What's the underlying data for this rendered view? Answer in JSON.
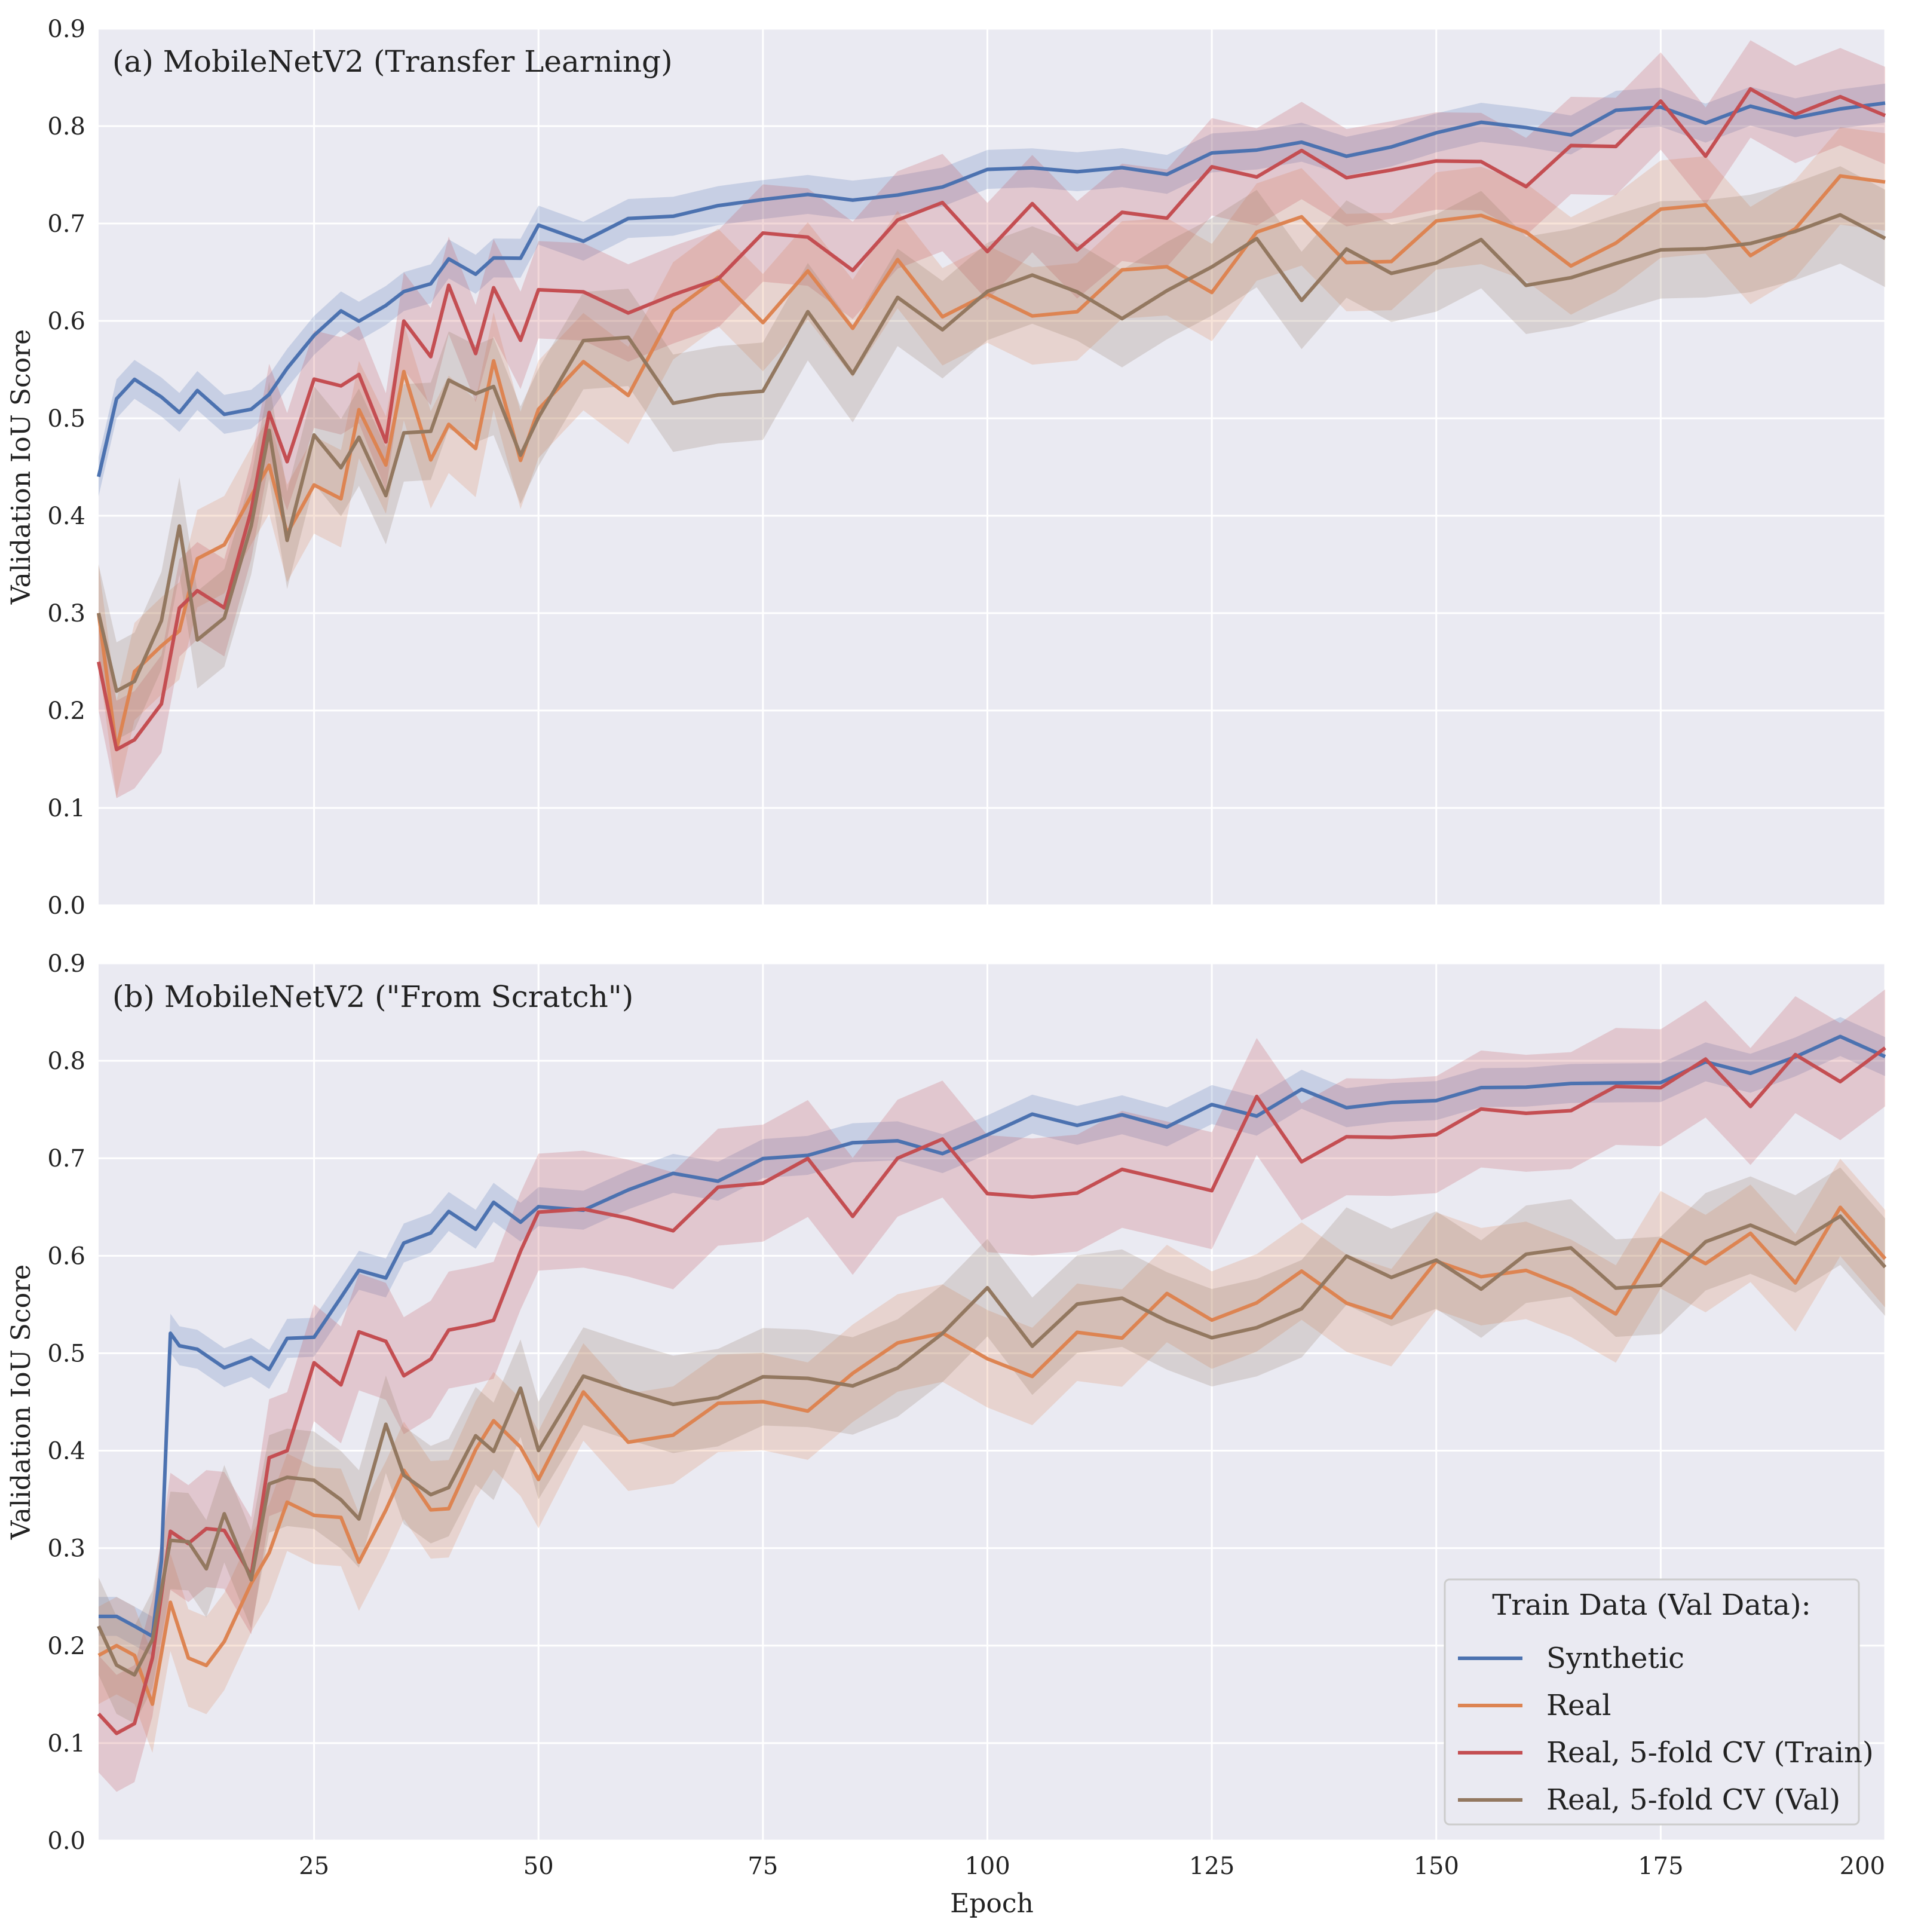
{
  "chart_data": [
    {
      "type": "line",
      "title": "(a) MobileNetV2 (Transfer Learning)",
      "xlabel": "",
      "ylabel": "Validation IoU Score",
      "xlim": [
        1,
        200
      ],
      "ylim": [
        0,
        0.9
      ],
      "xticks": [
        "25",
        "50",
        "75",
        "100",
        "125",
        "150",
        "175",
        "200"
      ],
      "yticks": [
        "0.0",
        "0.1",
        "0.2",
        "0.3",
        "0.4",
        "0.5",
        "0.6",
        "0.7",
        "0.8",
        "0.9"
      ],
      "grid": true,
      "series": [
        {
          "name": "Synthetic",
          "color": "#4C72B0",
          "x": [
            1,
            3,
            5,
            8,
            10,
            12,
            15,
            18,
            20,
            22,
            25,
            28,
            30,
            33,
            35,
            38,
            40,
            43,
            45,
            48,
            50,
            55,
            60,
            65,
            70,
            75,
            80,
            85,
            90,
            95,
            100,
            105,
            110,
            115,
            120,
            125,
            130,
            135,
            140,
            145,
            150,
            155,
            160,
            165,
            170,
            175,
            180,
            185,
            190,
            195,
            200
          ],
          "y": [
            0.44,
            0.52,
            0.54,
            0.52,
            0.51,
            0.53,
            0.5,
            0.52,
            0.53,
            0.55,
            0.57,
            0.6,
            0.61,
            0.6,
            0.62,
            0.64,
            0.65,
            0.65,
            0.66,
            0.67,
            0.69,
            0.68,
            0.7,
            0.71,
            0.73,
            0.73,
            0.73,
            0.74,
            0.74,
            0.74,
            0.74,
            0.75,
            0.76,
            0.76,
            0.76,
            0.77,
            0.76,
            0.77,
            0.77,
            0.77,
            0.79,
            0.79,
            0.8,
            0.8,
            0.81,
            0.81,
            0.81,
            0.82,
            0.82,
            0.83,
            0.83
          ],
          "band": 0.02
        },
        {
          "name": "Real",
          "color": "#DD8452",
          "x": [
            1,
            3,
            5,
            8,
            10,
            12,
            15,
            18,
            20,
            22,
            25,
            28,
            30,
            33,
            35,
            38,
            40,
            43,
            45,
            48,
            50,
            55,
            60,
            65,
            70,
            75,
            80,
            85,
            90,
            95,
            100,
            105,
            110,
            115,
            120,
            125,
            130,
            135,
            140,
            145,
            150,
            155,
            160,
            165,
            170,
            175,
            180,
            185,
            190,
            195,
            200
          ],
          "y": [
            0.3,
            0.16,
            0.24,
            0.27,
            0.3,
            0.33,
            0.35,
            0.42,
            0.45,
            0.38,
            0.47,
            0.41,
            0.5,
            0.46,
            0.52,
            0.47,
            0.5,
            0.49,
            0.52,
            0.44,
            0.48,
            0.53,
            0.56,
            0.6,
            0.61,
            0.62,
            0.63,
            0.62,
            0.63,
            0.63,
            0.64,
            0.6,
            0.62,
            0.66,
            0.65,
            0.66,
            0.68,
            0.67,
            0.68,
            0.68,
            0.68,
            0.68,
            0.68,
            0.69,
            0.68,
            0.69,
            0.7,
            0.7,
            0.7,
            0.71,
            0.71
          ],
          "band": 0.05
        },
        {
          "name": "Real, 5-fold CV (Train)",
          "color": "#C44E52",
          "x": [
            1,
            3,
            5,
            8,
            10,
            12,
            15,
            18,
            20,
            22,
            25,
            28,
            30,
            33,
            35,
            38,
            40,
            43,
            45,
            48,
            50,
            55,
            60,
            65,
            70,
            75,
            80,
            85,
            90,
            95,
            100,
            105,
            110,
            115,
            120,
            125,
            130,
            135,
            140,
            145,
            150,
            155,
            160,
            165,
            170,
            175,
            180,
            185,
            190,
            195,
            200
          ],
          "y": [
            0.25,
            0.16,
            0.17,
            0.22,
            0.27,
            0.32,
            0.3,
            0.4,
            0.5,
            0.45,
            0.55,
            0.5,
            0.52,
            0.5,
            0.58,
            0.55,
            0.6,
            0.57,
            0.6,
            0.58,
            0.63,
            0.63,
            0.64,
            0.66,
            0.65,
            0.66,
            0.68,
            0.68,
            0.7,
            0.7,
            0.71,
            0.71,
            0.71,
            0.72,
            0.73,
            0.74,
            0.73,
            0.75,
            0.75,
            0.76,
            0.77,
            0.77,
            0.77,
            0.78,
            0.78,
            0.79,
            0.79,
            0.8,
            0.8,
            0.81,
            0.8
          ],
          "band": 0.05
        },
        {
          "name": "Real, 5-fold CV (Val)",
          "color": "#937860",
          "x": [
            1,
            3,
            5,
            8,
            10,
            12,
            15,
            18,
            20,
            22,
            25,
            28,
            30,
            33,
            35,
            38,
            40,
            43,
            45,
            48,
            50,
            55,
            60,
            65,
            70,
            75,
            80,
            85,
            90,
            95,
            100,
            105,
            110,
            115,
            120,
            125,
            130,
            135,
            140,
            145,
            150,
            155,
            160,
            165,
            170,
            175,
            180,
            185,
            190,
            195,
            200
          ],
          "y": [
            0.3,
            0.22,
            0.23,
            0.26,
            0.38,
            0.24,
            0.28,
            0.42,
            0.46,
            0.41,
            0.5,
            0.43,
            0.47,
            0.45,
            0.52,
            0.51,
            0.54,
            0.53,
            0.56,
            0.5,
            0.53,
            0.57,
            0.56,
            0.54,
            0.55,
            0.56,
            0.57,
            0.58,
            0.6,
            0.6,
            0.61,
            0.62,
            0.63,
            0.63,
            0.64,
            0.64,
            0.65,
            0.65,
            0.66,
            0.66,
            0.67,
            0.67,
            0.67,
            0.68,
            0.68,
            0.68,
            0.69,
            0.69,
            0.7,
            0.7,
            0.7
          ],
          "band": 0.05
        }
      ]
    },
    {
      "type": "line",
      "title": "(b) MobileNetV2 (\"From Scratch\")",
      "xlabel": "Epoch",
      "ylabel": "Validation IoU Score",
      "xlim": [
        1,
        200
      ],
      "ylim": [
        0,
        0.9
      ],
      "xticks": [
        "25",
        "50",
        "75",
        "100",
        "125",
        "150",
        "175",
        "200"
      ],
      "yticks": [
        "0.0",
        "0.1",
        "0.2",
        "0.3",
        "0.4",
        "0.5",
        "0.6",
        "0.7",
        "0.8",
        "0.9"
      ],
      "grid": true,
      "legend": {
        "title": "Train Data (Val Data):",
        "placement": "lower-right",
        "entries": [
          "Synthetic",
          "Real",
          "Real, 5-fold CV (Train)",
          "Real, 5-fold CV (Val)"
        ]
      },
      "series": [
        {
          "name": "Synthetic",
          "color": "#4C72B0",
          "x": [
            1,
            3,
            5,
            7,
            8,
            9,
            10,
            12,
            15,
            18,
            20,
            22,
            25,
            28,
            30,
            33,
            35,
            38,
            40,
            43,
            45,
            48,
            50,
            55,
            60,
            65,
            70,
            75,
            80,
            85,
            90,
            95,
            100,
            105,
            110,
            115,
            120,
            125,
            130,
            135,
            140,
            145,
            150,
            155,
            160,
            165,
            170,
            175,
            180,
            185,
            190,
            195,
            200
          ],
          "y": [
            0.23,
            0.23,
            0.22,
            0.22,
            0.3,
            0.52,
            0.52,
            0.5,
            0.48,
            0.48,
            0.49,
            0.5,
            0.52,
            0.55,
            0.57,
            0.58,
            0.6,
            0.61,
            0.63,
            0.64,
            0.64,
            0.64,
            0.64,
            0.65,
            0.66,
            0.67,
            0.68,
            0.69,
            0.7,
            0.7,
            0.71,
            0.72,
            0.72,
            0.73,
            0.73,
            0.74,
            0.74,
            0.75,
            0.75,
            0.76,
            0.76,
            0.77,
            0.77,
            0.78,
            0.78,
            0.78,
            0.79,
            0.79,
            0.8,
            0.8,
            0.8,
            0.81,
            0.81
          ],
          "band": 0.02
        },
        {
          "name": "Real",
          "color": "#DD8452",
          "x": [
            1,
            3,
            5,
            7,
            9,
            11,
            13,
            15,
            18,
            20,
            22,
            25,
            28,
            30,
            33,
            35,
            38,
            40,
            43,
            45,
            48,
            50,
            55,
            60,
            65,
            70,
            75,
            80,
            85,
            90,
            95,
            100,
            105,
            110,
            115,
            120,
            125,
            130,
            135,
            140,
            145,
            150,
            155,
            160,
            165,
            170,
            175,
            180,
            185,
            190,
            195,
            200
          ],
          "y": [
            0.19,
            0.2,
            0.19,
            0.17,
            0.22,
            0.22,
            0.2,
            0.24,
            0.28,
            0.32,
            0.33,
            0.35,
            0.33,
            0.31,
            0.36,
            0.37,
            0.37,
            0.38,
            0.4,
            0.41,
            0.42,
            0.41,
            0.43,
            0.44,
            0.44,
            0.45,
            0.46,
            0.47,
            0.47,
            0.48,
            0.49,
            0.5,
            0.5,
            0.52,
            0.52,
            0.53,
            0.53,
            0.54,
            0.55,
            0.55,
            0.56,
            0.56,
            0.56,
            0.57,
            0.57,
            0.58,
            0.58,
            0.59,
            0.59,
            0.6,
            0.61,
            0.63
          ],
          "band": 0.05
        },
        {
          "name": "Real, 5-fold CV (Train)",
          "color": "#C44E52",
          "x": [
            1,
            3,
            5,
            7,
            9,
            11,
            13,
            15,
            18,
            20,
            22,
            25,
            28,
            30,
            33,
            35,
            38,
            40,
            43,
            45,
            48,
            50,
            55,
            60,
            65,
            70,
            75,
            80,
            85,
            90,
            95,
            100,
            105,
            110,
            115,
            120,
            125,
            130,
            135,
            140,
            145,
            150,
            155,
            160,
            165,
            170,
            175,
            180,
            185,
            190,
            195,
            200
          ],
          "y": [
            0.13,
            0.11,
            0.12,
            0.15,
            0.28,
            0.3,
            0.32,
            0.34,
            0.3,
            0.38,
            0.4,
            0.45,
            0.48,
            0.5,
            0.52,
            0.5,
            0.5,
            0.55,
            0.56,
            0.58,
            0.6,
            0.62,
            0.64,
            0.63,
            0.64,
            0.65,
            0.65,
            0.66,
            0.66,
            0.67,
            0.68,
            0.69,
            0.69,
            0.7,
            0.7,
            0.71,
            0.71,
            0.72,
            0.73,
            0.74,
            0.75,
            0.74,
            0.75,
            0.76,
            0.76,
            0.77,
            0.76,
            0.77,
            0.78,
            0.78,
            0.78,
            0.79
          ],
          "band": 0.06
        },
        {
          "name": "Real, 5-fold CV (Val)",
          "color": "#937860",
          "x": [
            1,
            3,
            5,
            7,
            9,
            11,
            13,
            15,
            18,
            20,
            22,
            25,
            28,
            30,
            33,
            35,
            38,
            40,
            43,
            45,
            48,
            50,
            55,
            60,
            65,
            70,
            75,
            80,
            85,
            90,
            95,
            100,
            105,
            110,
            115,
            120,
            125,
            130,
            135,
            140,
            145,
            150,
            155,
            160,
            165,
            170,
            175,
            180,
            185,
            190,
            195,
            200
          ],
          "y": [
            0.22,
            0.18,
            0.17,
            0.18,
            0.28,
            0.27,
            0.3,
            0.32,
            0.27,
            0.33,
            0.35,
            0.36,
            0.37,
            0.36,
            0.4,
            0.38,
            0.36,
            0.38,
            0.4,
            0.41,
            0.43,
            0.42,
            0.45,
            0.47,
            0.48,
            0.49,
            0.49,
            0.5,
            0.5,
            0.51,
            0.52,
            0.53,
            0.53,
            0.54,
            0.54,
            0.55,
            0.55,
            0.56,
            0.56,
            0.57,
            0.57,
            0.57,
            0.57,
            0.58,
            0.58,
            0.58,
            0.59,
            0.59,
            0.6,
            0.61,
            0.62,
            0.61
          ],
          "band": 0.05
        }
      ]
    }
  ]
}
